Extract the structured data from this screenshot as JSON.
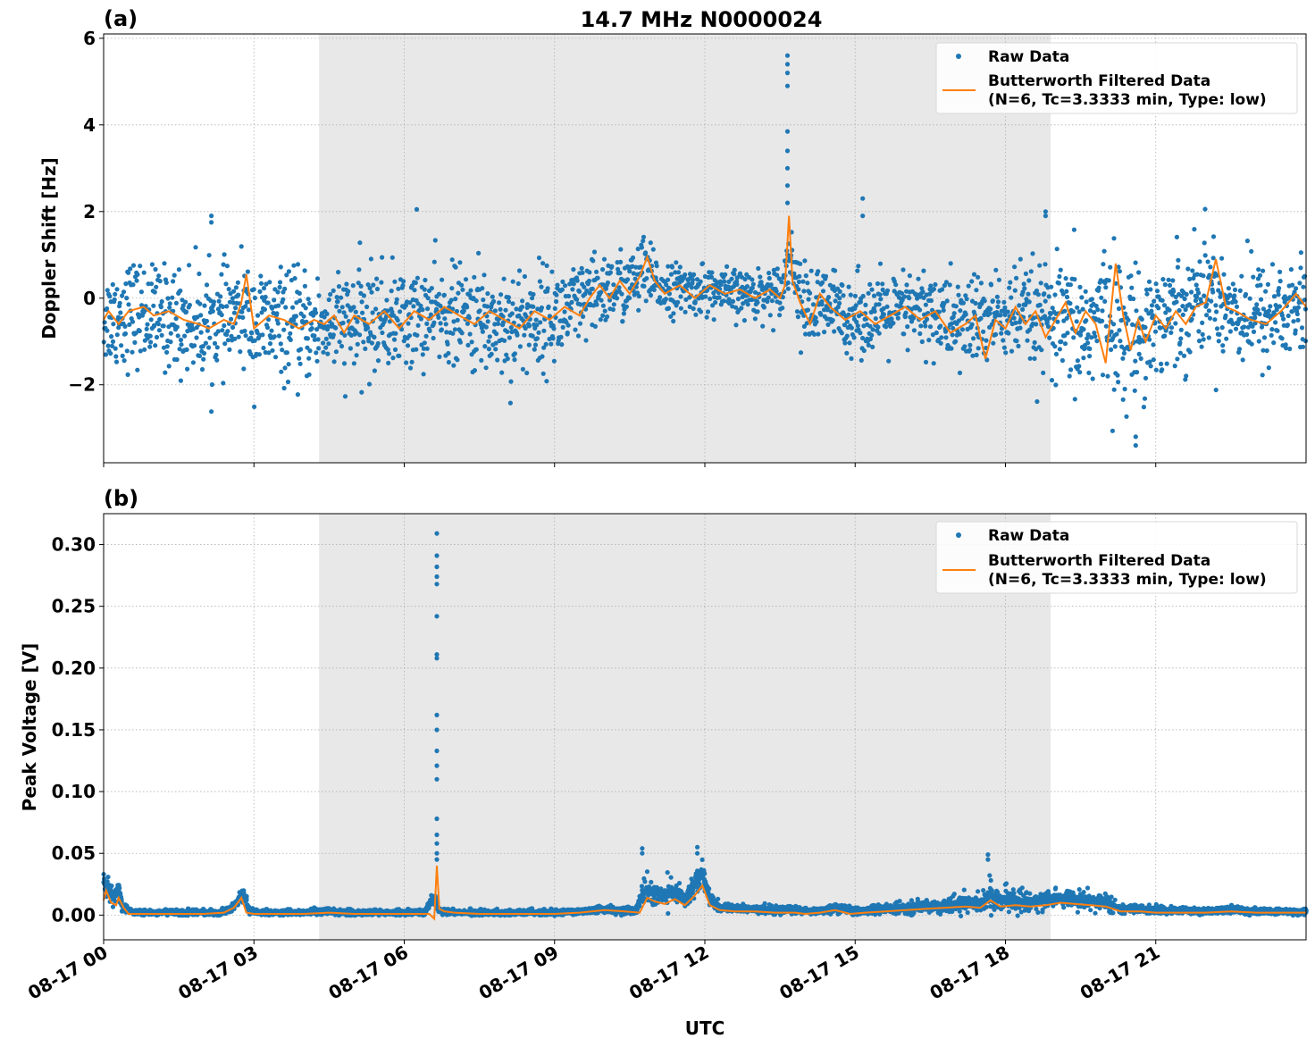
{
  "figure": {
    "title": "14.7 MHz N0000024",
    "xlabel": "UTC"
  },
  "colors": {
    "raw": "#1f77b4",
    "filtered": "#ff7f0e",
    "night_shade": "#e8e8e8"
  },
  "legend": {
    "raw_label": "Raw Data",
    "filtered_label_line1": "Butterworth Filtered Data",
    "filtered_label_line2": "(N=6, Tc=3.3333 min, Type: low)",
    "placement": "upper right"
  },
  "chart_data": [
    {
      "type": "scatter",
      "panel_label": "(a)",
      "title": "14.7 MHz N0000024",
      "xlabel": "",
      "ylabel": "Doppler Shift [Hz]",
      "xlim_hours": [
        0,
        24
      ],
      "ylim": [
        -3.8,
        6.1
      ],
      "yticks": [
        -2,
        0,
        2,
        4,
        6
      ],
      "yticklabels": [
        "−2",
        "0",
        "2",
        "4",
        "6"
      ],
      "grid": true,
      "shaded_region_hours": [
        4.3,
        18.9
      ],
      "series": [
        {
          "name": "Raw Data",
          "kind": "points",
          "x_hours": [
            0.0,
            0.25,
            0.5,
            1.0,
            1.5,
            2.0,
            2.5,
            2.8,
            3.0,
            3.5,
            4.0,
            4.5,
            5.0,
            5.5,
            6.0,
            6.5,
            7.0,
            7.5,
            8.0,
            8.5,
            9.0,
            9.5,
            10.0,
            10.5,
            10.8,
            11.0,
            11.5,
            12.0,
            12.5,
            13.0,
            13.5,
            13.7,
            14.0,
            14.5,
            15.0,
            15.5,
            16.0,
            16.5,
            17.0,
            17.5,
            18.0,
            18.5,
            19.0,
            19.5,
            20.0,
            20.4,
            20.8,
            21.0,
            21.5,
            22.0,
            22.5,
            23.0,
            23.5,
            24.0
          ],
          "center": [
            -0.5,
            -0.4,
            -0.3,
            -0.4,
            -0.5,
            -0.6,
            -0.5,
            -0.3,
            -0.6,
            -0.6,
            -0.7,
            -0.6,
            -0.6,
            -0.5,
            -0.5,
            -0.4,
            -0.4,
            -0.5,
            -0.6,
            -0.5,
            -0.4,
            -0.2,
            0.2,
            0.3,
            0.6,
            0.3,
            0.2,
            0.2,
            0.1,
            0.1,
            0.2,
            1.0,
            -0.3,
            -0.2,
            -0.4,
            -0.4,
            -0.3,
            -0.3,
            -0.6,
            -0.5,
            -0.4,
            -0.5,
            -0.6,
            -0.8,
            -0.3,
            -0.9,
            -0.6,
            -0.5,
            -0.2,
            0.2,
            -0.2,
            -0.4,
            -0.3,
            -0.2
          ],
          "spread": [
            0.9,
            1.1,
            1.1,
            1.0,
            1.1,
            1.1,
            1.0,
            1.0,
            1.2,
            1.1,
            1.1,
            1.0,
            1.1,
            1.1,
            1.0,
            1.0,
            1.0,
            1.1,
            1.2,
            1.1,
            1.0,
            0.9,
            0.8,
            0.7,
            0.8,
            0.6,
            0.5,
            0.5,
            0.5,
            0.5,
            0.5,
            0.6,
            0.9,
            0.8,
            0.8,
            0.8,
            0.8,
            0.9,
            1.0,
            1.0,
            0.9,
            1.1,
            1.2,
            1.4,
            1.4,
            1.4,
            1.3,
            1.2,
            1.2,
            1.2,
            1.1,
            1.1,
            1.1,
            1.1
          ],
          "spikes": [
            {
              "x_hours": 13.65,
              "values": [
                5.6,
                5.4,
                5.2,
                4.9,
                3.85,
                3.4,
                3.0,
                2.6,
                2.2
              ]
            },
            {
              "x_hours": 2.15,
              "values": [
                1.9,
                1.75
              ]
            },
            {
              "x_hours": 6.25,
              "values": [
                2.05
              ]
            },
            {
              "x_hours": 15.15,
              "values": [
                2.3,
                1.9
              ]
            },
            {
              "x_hours": 18.8,
              "values": [
                2.0,
                1.9
              ]
            },
            {
              "x_hours": 20.6,
              "values": [
                -3.4,
                -3.2
              ]
            }
          ]
        },
        {
          "name": "Butterworth Filtered Data",
          "kind": "line",
          "x_hours": [
            0.0,
            0.1,
            0.3,
            0.5,
            0.8,
            1.0,
            1.3,
            1.6,
            1.9,
            2.1,
            2.4,
            2.6,
            2.75,
            2.85,
            3.0,
            3.3,
            3.6,
            3.9,
            4.2,
            4.4,
            4.6,
            4.8,
            5.0,
            5.3,
            5.6,
            5.9,
            6.2,
            6.5,
            6.8,
            7.1,
            7.4,
            7.7,
            8.0,
            8.3,
            8.6,
            8.9,
            9.2,
            9.5,
            9.7,
            9.9,
            10.1,
            10.3,
            10.5,
            10.7,
            10.85,
            11.0,
            11.2,
            11.5,
            11.8,
            12.1,
            12.4,
            12.7,
            13.0,
            13.3,
            13.5,
            13.6,
            13.68,
            13.75,
            13.9,
            14.1,
            14.3,
            14.5,
            14.8,
            15.1,
            15.4,
            15.7,
            16.0,
            16.3,
            16.6,
            16.9,
            17.2,
            17.4,
            17.6,
            17.8,
            18.0,
            18.2,
            18.4,
            18.6,
            18.8,
            19.0,
            19.2,
            19.4,
            19.6,
            19.8,
            20.0,
            20.2,
            20.35,
            20.5,
            20.65,
            20.8,
            21.0,
            21.2,
            21.4,
            21.6,
            21.8,
            22.0,
            22.2,
            22.4,
            22.6,
            22.9,
            23.2,
            23.5,
            23.8,
            24.0
          ],
          "values": [
            -0.5,
            -0.3,
            -0.6,
            -0.3,
            -0.2,
            -0.4,
            -0.3,
            -0.5,
            -0.6,
            -0.7,
            -0.5,
            -0.6,
            -0.1,
            0.55,
            -0.7,
            -0.4,
            -0.5,
            -0.7,
            -0.5,
            -0.6,
            -0.4,
            -0.8,
            -0.4,
            -0.6,
            -0.3,
            -0.7,
            -0.3,
            -0.5,
            -0.2,
            -0.4,
            -0.6,
            -0.3,
            -0.5,
            -0.7,
            -0.3,
            -0.5,
            -0.2,
            -0.4,
            0.0,
            0.3,
            0.0,
            0.4,
            0.1,
            0.5,
            0.95,
            0.4,
            0.1,
            0.3,
            0.0,
            0.3,
            0.1,
            0.2,
            0.0,
            0.2,
            0.0,
            0.3,
            1.9,
            0.4,
            -0.1,
            -0.6,
            0.1,
            -0.2,
            -0.5,
            -0.3,
            -0.6,
            -0.4,
            -0.2,
            -0.5,
            -0.3,
            -0.8,
            -0.6,
            -0.4,
            -1.4,
            -0.5,
            -0.7,
            -0.2,
            -0.6,
            -0.3,
            -0.9,
            -0.5,
            -0.1,
            -0.8,
            -0.3,
            -0.6,
            -1.5,
            0.8,
            -0.4,
            -1.2,
            -0.5,
            -1.0,
            -0.4,
            -0.7,
            -0.3,
            -0.6,
            -0.2,
            -0.1,
            0.9,
            -0.2,
            -0.3,
            -0.5,
            -0.6,
            -0.3,
            0.1,
            -0.2
          ]
        }
      ]
    },
    {
      "type": "scatter",
      "panel_label": "(b)",
      "title": "",
      "xlabel": "UTC",
      "ylabel": "Peak Voltage [V]",
      "xlim_hours": [
        0,
        24
      ],
      "ylim": [
        -0.02,
        0.325
      ],
      "yticks": [
        0.0,
        0.05,
        0.1,
        0.15,
        0.2,
        0.25,
        0.3
      ],
      "yticklabels": [
        "0.00",
        "0.05",
        "0.10",
        "0.15",
        "0.20",
        "0.25",
        "0.30"
      ],
      "grid": true,
      "shaded_region_hours": [
        4.3,
        18.9
      ],
      "xticks_hours": [
        0,
        3,
        6,
        9,
        12,
        15,
        18,
        21
      ],
      "xticklabels": [
        "08-17 00",
        "08-17 03",
        "08-17 06",
        "08-17 09",
        "08-17 12",
        "08-17 15",
        "08-17 18",
        "08-17 21"
      ],
      "series": [
        {
          "name": "Raw Data",
          "kind": "points",
          "x_hours": [
            0.0,
            0.1,
            0.2,
            0.3,
            0.35,
            0.5,
            1.0,
            1.5,
            2.0,
            2.3,
            2.5,
            2.65,
            2.8,
            2.9,
            3.2,
            3.5,
            4.0,
            4.5,
            5.0,
            5.5,
            6.0,
            6.4,
            6.6,
            6.7,
            6.9,
            7.5,
            8.0,
            8.5,
            9.0,
            9.5,
            10.0,
            10.3,
            10.6,
            10.8,
            11.0,
            11.2,
            11.4,
            11.6,
            11.8,
            11.95,
            12.1,
            12.3,
            12.6,
            13.0,
            13.4,
            13.8,
            14.0,
            14.3,
            14.6,
            15.0,
            15.3,
            15.6,
            16.0,
            16.4,
            16.8,
            17.2,
            17.5,
            17.7,
            17.9,
            18.2,
            18.5,
            18.8,
            19.1,
            19.4,
            19.7,
            20.0,
            20.3,
            20.6,
            21.0,
            21.5,
            22.0,
            22.5,
            23.0,
            23.5,
            24.0
          ],
          "center": [
            0.025,
            0.02,
            0.015,
            0.022,
            0.01,
            0.003,
            0.002,
            0.002,
            0.002,
            0.002,
            0.004,
            0.01,
            0.018,
            0.003,
            0.002,
            0.002,
            0.002,
            0.003,
            0.002,
            0.002,
            0.002,
            0.002,
            0.015,
            0.004,
            0.002,
            0.002,
            0.002,
            0.002,
            0.002,
            0.003,
            0.005,
            0.004,
            0.003,
            0.02,
            0.018,
            0.015,
            0.02,
            0.012,
            0.025,
            0.035,
            0.012,
            0.006,
            0.005,
            0.005,
            0.004,
            0.004,
            0.003,
            0.003,
            0.006,
            0.003,
            0.004,
            0.005,
            0.006,
            0.007,
            0.008,
            0.01,
            0.009,
            0.016,
            0.012,
            0.012,
            0.011,
            0.012,
            0.014,
            0.013,
            0.012,
            0.01,
            0.005,
            0.005,
            0.004,
            0.004,
            0.003,
            0.004,
            0.003,
            0.003,
            0.003
          ],
          "spread": [
            0.008,
            0.007,
            0.006,
            0.007,
            0.004,
            0.002,
            0.0015,
            0.0015,
            0.0015,
            0.0015,
            0.002,
            0.004,
            0.007,
            0.002,
            0.0015,
            0.0015,
            0.0015,
            0.002,
            0.0015,
            0.0015,
            0.0015,
            0.0015,
            0.008,
            0.002,
            0.0015,
            0.0015,
            0.0015,
            0.0015,
            0.0015,
            0.002,
            0.003,
            0.003,
            0.002,
            0.012,
            0.01,
            0.01,
            0.01,
            0.007,
            0.012,
            0.012,
            0.008,
            0.004,
            0.003,
            0.003,
            0.003,
            0.003,
            0.002,
            0.002,
            0.004,
            0.002,
            0.003,
            0.004,
            0.004,
            0.005,
            0.006,
            0.007,
            0.007,
            0.012,
            0.009,
            0.009,
            0.008,
            0.008,
            0.008,
            0.008,
            0.007,
            0.007,
            0.003,
            0.003,
            0.003,
            0.003,
            0.002,
            0.003,
            0.002,
            0.002,
            0.002
          ],
          "spikes": [
            {
              "x_hours": 6.65,
              "values": [
                0.309,
                0.291,
                0.282,
                0.274,
                0.268,
                0.242,
                0.211,
                0.208,
                0.162,
                0.15,
                0.133,
                0.121,
                0.11,
                0.078,
                0.065,
                0.058,
                0.05,
                0.045
              ]
            },
            {
              "x_hours": 10.75,
              "values": [
                0.054,
                0.05
              ]
            },
            {
              "x_hours": 11.85,
              "values": [
                0.055,
                0.05
              ]
            },
            {
              "x_hours": 17.65,
              "values": [
                0.049,
                0.045
              ]
            }
          ]
        },
        {
          "name": "Butterworth Filtered Data",
          "kind": "line",
          "x_hours": [
            0.0,
            0.05,
            0.15,
            0.25,
            0.3,
            0.4,
            0.5,
            1.0,
            1.5,
            2.0,
            2.4,
            2.6,
            2.75,
            2.85,
            3.0,
            3.5,
            4.0,
            4.5,
            5.0,
            5.5,
            6.0,
            6.5,
            6.6,
            6.65,
            6.7,
            6.8,
            7.0,
            7.5,
            8.0,
            8.5,
            9.0,
            9.5,
            10.0,
            10.4,
            10.7,
            10.85,
            11.0,
            11.2,
            11.4,
            11.6,
            11.8,
            11.95,
            12.1,
            12.3,
            12.6,
            13.0,
            13.4,
            13.8,
            14.0,
            14.3,
            14.6,
            14.9,
            15.2,
            15.6,
            16.0,
            16.4,
            16.8,
            17.2,
            17.5,
            17.7,
            17.9,
            18.2,
            18.5,
            18.8,
            19.1,
            19.4,
            19.7,
            20.0,
            20.3,
            20.7,
            21.0,
            21.5,
            22.0,
            22.5,
            23.0,
            23.5,
            24.0
          ],
          "values": [
            0.012,
            0.02,
            0.01,
            0.008,
            0.014,
            0.006,
            0.001,
            0.001,
            0.001,
            0.001,
            0.002,
            0.006,
            0.014,
            0.002,
            0.001,
            0.001,
            0.001,
            0.002,
            0.001,
            0.001,
            0.001,
            0.001,
            -0.003,
            0.04,
            0.005,
            0.003,
            0.002,
            0.001,
            0.001,
            0.001,
            0.001,
            0.002,
            0.004,
            0.003,
            0.002,
            0.014,
            0.011,
            0.009,
            0.013,
            0.008,
            0.016,
            0.024,
            0.008,
            0.004,
            0.003,
            0.003,
            0.002,
            0.002,
            0.001,
            0.002,
            0.004,
            0.001,
            0.002,
            0.003,
            0.004,
            0.005,
            0.006,
            0.007,
            0.006,
            0.012,
            0.007,
            0.008,
            0.007,
            0.008,
            0.01,
            0.009,
            0.008,
            0.007,
            0.003,
            0.003,
            0.002,
            0.002,
            0.002,
            0.003,
            0.002,
            0.002,
            0.002
          ]
        }
      ]
    }
  ]
}
